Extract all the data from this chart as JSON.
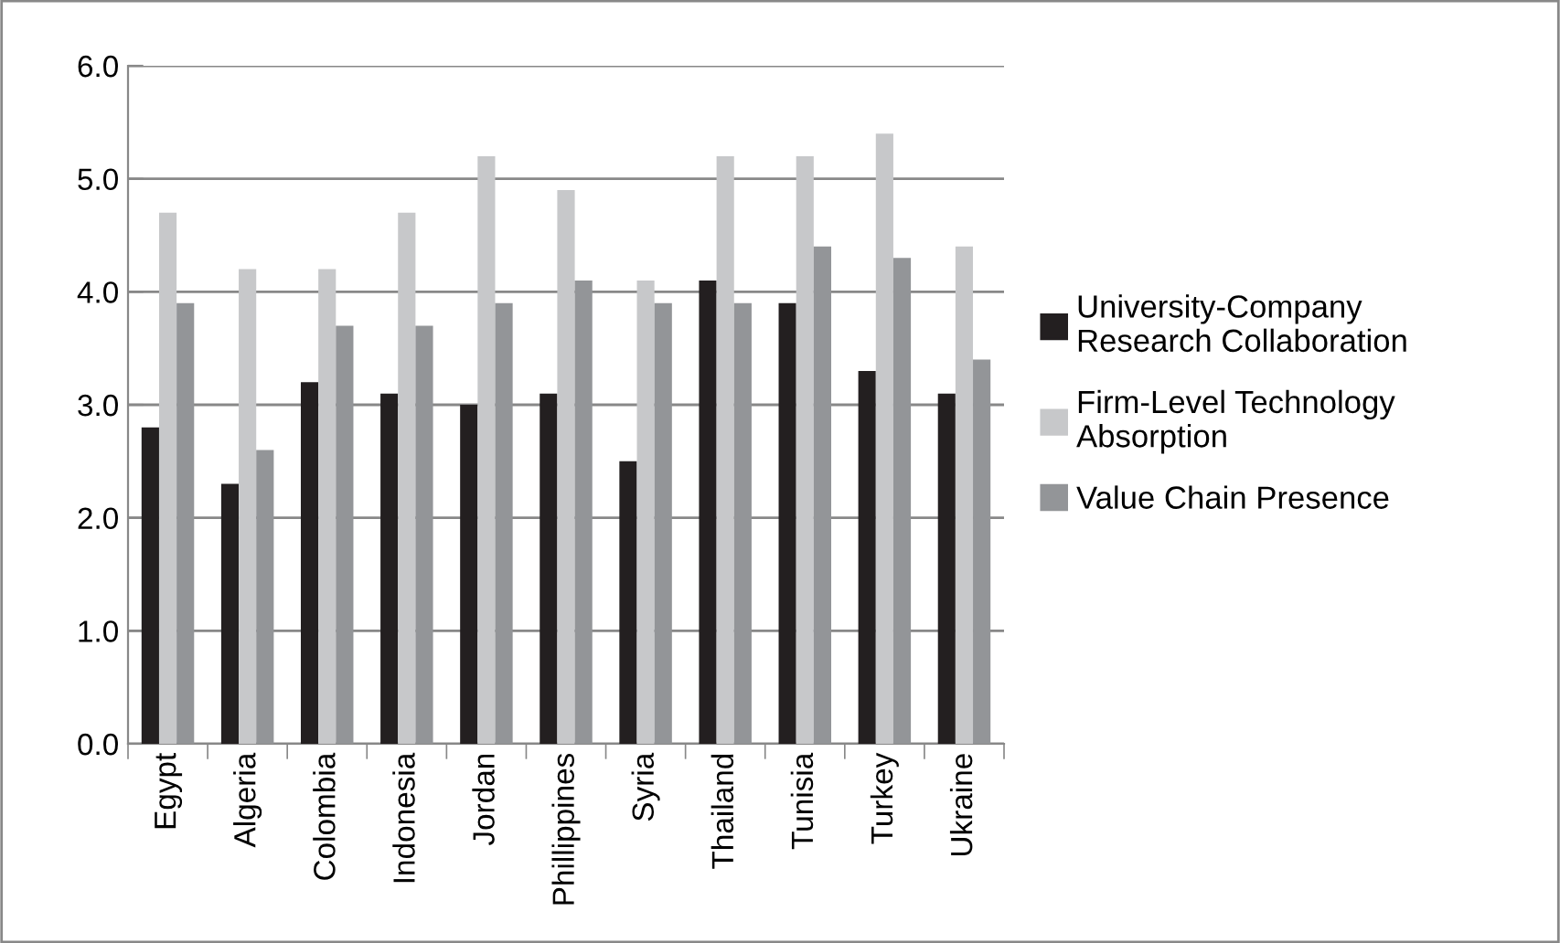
{
  "chart_data": {
    "type": "bar",
    "categories": [
      "Egypt",
      "Algeria",
      "Colombia",
      "Indonesia",
      "Jordan",
      "Phillippines",
      "Syria",
      "Thailand",
      "Tunisia",
      "Turkey",
      "Ukraine"
    ],
    "series": [
      {
        "name": "University-Company Research Collaboration",
        "color": "#231f20",
        "values": [
          2.8,
          2.3,
          3.2,
          3.1,
          3.0,
          3.1,
          2.5,
          4.1,
          3.9,
          3.3,
          3.1
        ]
      },
      {
        "name": "Firm-Level Technology Absorption",
        "color": "#c7c8ca",
        "values": [
          4.7,
          4.2,
          4.2,
          4.7,
          5.2,
          4.9,
          4.1,
          5.2,
          5.2,
          5.4,
          4.4
        ]
      },
      {
        "name": "Value Chain Presence",
        "color": "#939598",
        "values": [
          3.9,
          2.6,
          3.7,
          3.7,
          3.9,
          4.1,
          3.9,
          3.9,
          4.4,
          4.3,
          3.4
        ]
      }
    ],
    "ylim": [
      0,
      6
    ],
    "yticks": [
      {
        "value": 0,
        "label": "0.0"
      },
      {
        "value": 1,
        "label": "1.0"
      },
      {
        "value": 2,
        "label": "2.0"
      },
      {
        "value": 3,
        "label": "3.0"
      },
      {
        "value": 4,
        "label": "4.0"
      },
      {
        "value": 5,
        "label": "5.0"
      },
      {
        "value": 6,
        "label": "6.0"
      }
    ],
    "grid": "y",
    "legend": "right"
  }
}
